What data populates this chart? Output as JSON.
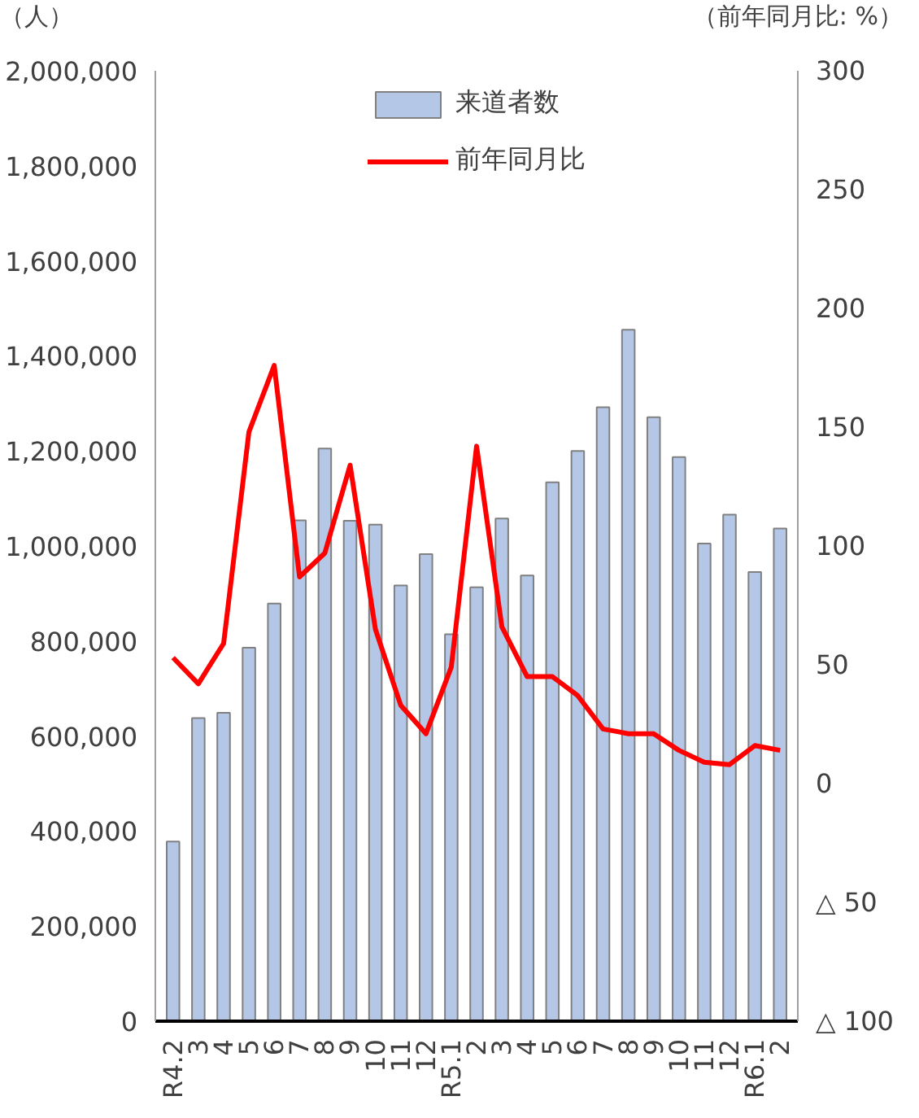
{
  "chart_data": {
    "type": "bar",
    "ylabel": "（人）",
    "y2label": "（前年同月比: %）",
    "categories": [
      "R4.2",
      "3",
      "4",
      "5",
      "6",
      "7",
      "8",
      "9",
      "10",
      "11",
      "12",
      "R5.1",
      "2",
      "3",
      "4",
      "5",
      "6",
      "7",
      "8",
      "9",
      "10",
      "11",
      "12",
      "R6.1",
      "2"
    ],
    "series": [
      {
        "name": "来道者数",
        "color": "#b4c7e7",
        "values": [
          378000,
          638000,
          649000,
          786000,
          879000,
          1054000,
          1205000,
          1053000,
          1045000,
          917000,
          983000,
          814000,
          913000,
          1058000,
          938000,
          1134000,
          1200000,
          1292000,
          1455000,
          1271000,
          1187000,
          1005000,
          1066000,
          945000,
          1037000
        ]
      },
      {
        "name": "前年同月比",
        "type": "line",
        "axis": "y2",
        "color": "#ff0000",
        "values": [
          53,
          42,
          59,
          148,
          176,
          87,
          97,
          134,
          65,
          33,
          21,
          49,
          142,
          66,
          45,
          45,
          37,
          23,
          21,
          21,
          14,
          9,
          8,
          16,
          14
        ]
      }
    ],
    "ylim": [
      0,
      2000000
    ],
    "yticks": [
      0,
      {
        "value": 200000,
        "label": "200,000"
      },
      {
        "value": 400000,
        "label": "400,000"
      },
      {
        "value": 600000,
        "label": "600,000"
      },
      {
        "value": 800000,
        "label": "800,000"
      },
      {
        "value": 1000000,
        "label": "1,000,000"
      },
      {
        "value": 1200000,
        "label": "1,200,000"
      },
      {
        "value": 1400000,
        "label": "1,400,000"
      },
      {
        "value": 1600000,
        "label": "1,600,000"
      },
      {
        "value": 1800000,
        "label": "1,800,000"
      },
      {
        "value": 2000000,
        "label": "2,000,000"
      }
    ],
    "y2lim": [
      -100,
      300
    ],
    "y2ticks": [
      {
        "value": -100,
        "label": "△ 100"
      },
      {
        "value": -50,
        "label": "△ 50"
      },
      0,
      50,
      100,
      150,
      200,
      250,
      300
    ],
    "legend": "top",
    "grid": false
  }
}
